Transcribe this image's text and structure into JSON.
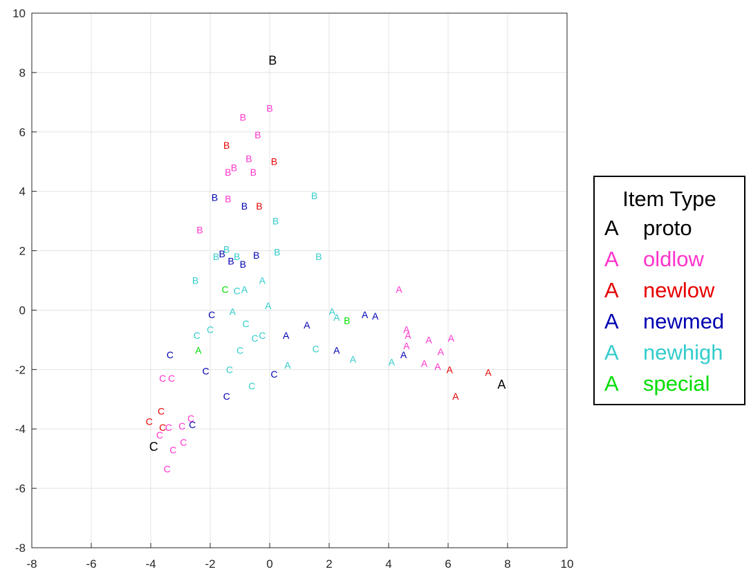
{
  "chart_data": {
    "type": "scatter",
    "title": "",
    "xlabel": "",
    "ylabel": "",
    "xlim": [
      -8,
      10
    ],
    "ylim": [
      -8,
      10
    ],
    "xticks": [
      -8,
      -6,
      -4,
      -2,
      0,
      2,
      4,
      6,
      8,
      10
    ],
    "yticks": [
      -8,
      -6,
      -4,
      -2,
      0,
      2,
      4,
      6,
      8,
      10
    ],
    "grid": true,
    "legend": {
      "title": "Item Type",
      "placement": "outside-right",
      "marker": "A",
      "entries": [
        {
          "name": "proto",
          "color": "#000000"
        },
        {
          "name": "oldlow",
          "color": "#ff33cc"
        },
        {
          "name": "newlow",
          "color": "#e60000"
        },
        {
          "name": "newmed",
          "color": "#0000b3"
        },
        {
          "name": "newhigh",
          "color": "#33cccc"
        },
        {
          "name": "special",
          "color": "#00dd00"
        }
      ]
    },
    "series": [
      {
        "name": "proto",
        "color": "#000000",
        "points": [
          {
            "x": 0.1,
            "y": 8.4,
            "label": "B"
          },
          {
            "x": 7.8,
            "y": -2.5,
            "label": "A"
          },
          {
            "x": -3.9,
            "y": -4.6,
            "label": "C"
          }
        ]
      },
      {
        "name": "oldlow",
        "color": "#ff33cc",
        "points": [
          {
            "x": 0.0,
            "y": 6.8,
            "label": "B"
          },
          {
            "x": -0.9,
            "y": 6.5,
            "label": "B"
          },
          {
            "x": -0.4,
            "y": 5.9,
            "label": "B"
          },
          {
            "x": -0.7,
            "y": 5.1,
            "label": "B"
          },
          {
            "x": -1.2,
            "y": 4.8,
            "label": "B"
          },
          {
            "x": -1.4,
            "y": 4.65,
            "label": "B"
          },
          {
            "x": -0.55,
            "y": 4.65,
            "label": "B"
          },
          {
            "x": -1.4,
            "y": 3.75,
            "label": "B"
          },
          {
            "x": -2.35,
            "y": 2.7,
            "label": "B"
          },
          {
            "x": 4.35,
            "y": 0.7,
            "label": "A"
          },
          {
            "x": 4.6,
            "y": -0.65,
            "label": "A"
          },
          {
            "x": 4.65,
            "y": -0.85,
            "label": "A"
          },
          {
            "x": 5.35,
            "y": -1.0,
            "label": "A"
          },
          {
            "x": 6.1,
            "y": -0.95,
            "label": "A"
          },
          {
            "x": 4.6,
            "y": -1.2,
            "label": "A"
          },
          {
            "x": 5.75,
            "y": -1.4,
            "label": "A"
          },
          {
            "x": 5.2,
            "y": -1.8,
            "label": "A"
          },
          {
            "x": 5.65,
            "y": -1.9,
            "label": "A"
          },
          {
            "x": -3.6,
            "y": -2.3,
            "label": "C"
          },
          {
            "x": -3.3,
            "y": -2.3,
            "label": "C"
          },
          {
            "x": -2.65,
            "y": -3.65,
            "label": "C"
          },
          {
            "x": -2.95,
            "y": -3.9,
            "label": "C"
          },
          {
            "x": -3.4,
            "y": -3.95,
            "label": "C"
          },
          {
            "x": -3.7,
            "y": -4.2,
            "label": "C"
          },
          {
            "x": -2.9,
            "y": -4.45,
            "label": "C"
          },
          {
            "x": -3.25,
            "y": -4.7,
            "label": "C"
          },
          {
            "x": -3.45,
            "y": -5.35,
            "label": "C"
          }
        ]
      },
      {
        "name": "newlow",
        "color": "#e60000",
        "points": [
          {
            "x": -1.45,
            "y": 5.55,
            "label": "B"
          },
          {
            "x": 0.15,
            "y": 5.0,
            "label": "B"
          },
          {
            "x": -0.35,
            "y": 3.5,
            "label": "B"
          },
          {
            "x": 6.05,
            "y": -2.0,
            "label": "A"
          },
          {
            "x": 7.35,
            "y": -2.1,
            "label": "A"
          },
          {
            "x": 6.25,
            "y": -2.9,
            "label": "A"
          },
          {
            "x": -3.65,
            "y": -3.4,
            "label": "C"
          },
          {
            "x": -4.05,
            "y": -3.75,
            "label": "C"
          },
          {
            "x": -3.6,
            "y": -3.95,
            "label": "C"
          }
        ]
      },
      {
        "name": "newmed",
        "color": "#0000b3",
        "points": [
          {
            "x": -1.85,
            "y": 3.8,
            "label": "B"
          },
          {
            "x": -0.85,
            "y": 3.5,
            "label": "B"
          },
          {
            "x": -1.6,
            "y": 1.9,
            "label": "B"
          },
          {
            "x": -0.45,
            "y": 1.85,
            "label": "B"
          },
          {
            "x": -1.3,
            "y": 1.65,
            "label": "B"
          },
          {
            "x": -0.9,
            "y": 1.55,
            "label": "B"
          },
          {
            "x": -1.95,
            "y": -0.15,
            "label": "C"
          },
          {
            "x": 3.2,
            "y": -0.15,
            "label": "A"
          },
          {
            "x": 3.55,
            "y": -0.2,
            "label": "A"
          },
          {
            "x": 1.25,
            "y": -0.5,
            "label": "A"
          },
          {
            "x": 0.55,
            "y": -0.85,
            "label": "A"
          },
          {
            "x": 2.25,
            "y": -1.35,
            "label": "A"
          },
          {
            "x": 4.5,
            "y": -1.5,
            "label": "A"
          },
          {
            "x": -3.35,
            "y": -1.5,
            "label": "C"
          },
          {
            "x": -2.15,
            "y": -2.05,
            "label": "C"
          },
          {
            "x": 0.15,
            "y": -2.15,
            "label": "C"
          },
          {
            "x": -1.45,
            "y": -2.9,
            "label": "C"
          },
          {
            "x": -2.6,
            "y": -3.85,
            "label": "C"
          }
        ]
      },
      {
        "name": "newhigh",
        "color": "#33cccc",
        "points": [
          {
            "x": 1.5,
            "y": 3.85,
            "label": "B"
          },
          {
            "x": 0.2,
            "y": 3.0,
            "label": "B"
          },
          {
            "x": -1.45,
            "y": 2.05,
            "label": "B"
          },
          {
            "x": 0.25,
            "y": 1.95,
            "label": "B"
          },
          {
            "x": -1.8,
            "y": 1.8,
            "label": "B"
          },
          {
            "x": -1.1,
            "y": 1.8,
            "label": "B"
          },
          {
            "x": 1.65,
            "y": 1.8,
            "label": "B"
          },
          {
            "x": -2.5,
            "y": 1.0,
            "label": "B"
          },
          {
            "x": -0.25,
            "y": 1.0,
            "label": "A"
          },
          {
            "x": -0.85,
            "y": 0.7,
            "label": "A"
          },
          {
            "x": -1.1,
            "y": 0.65,
            "label": "C"
          },
          {
            "x": -0.05,
            "y": 0.15,
            "label": "A"
          },
          {
            "x": -1.25,
            "y": -0.05,
            "label": "A"
          },
          {
            "x": 2.1,
            "y": -0.05,
            "label": "A"
          },
          {
            "x": 2.25,
            "y": -0.25,
            "label": "A"
          },
          {
            "x": -0.8,
            "y": -0.45,
            "label": "C"
          },
          {
            "x": -2.0,
            "y": -0.65,
            "label": "C"
          },
          {
            "x": -2.45,
            "y": -0.85,
            "label": "C"
          },
          {
            "x": -0.25,
            "y": -0.85,
            "label": "C"
          },
          {
            "x": -0.5,
            "y": -0.95,
            "label": "C"
          },
          {
            "x": 1.55,
            "y": -1.3,
            "label": "C"
          },
          {
            "x": -1.0,
            "y": -1.35,
            "label": "C"
          },
          {
            "x": 2.8,
            "y": -1.65,
            "label": "A"
          },
          {
            "x": 4.1,
            "y": -1.75,
            "label": "A"
          },
          {
            "x": 0.6,
            "y": -1.85,
            "label": "A"
          },
          {
            "x": -1.35,
            "y": -2.0,
            "label": "C"
          },
          {
            "x": -0.6,
            "y": -2.55,
            "label": "C"
          }
        ]
      },
      {
        "name": "special",
        "color": "#00dd00",
        "points": [
          {
            "x": -1.5,
            "y": 0.7,
            "label": "C"
          },
          {
            "x": 2.6,
            "y": -0.35,
            "label": "B"
          },
          {
            "x": -2.4,
            "y": -1.35,
            "label": "A"
          }
        ]
      }
    ]
  }
}
